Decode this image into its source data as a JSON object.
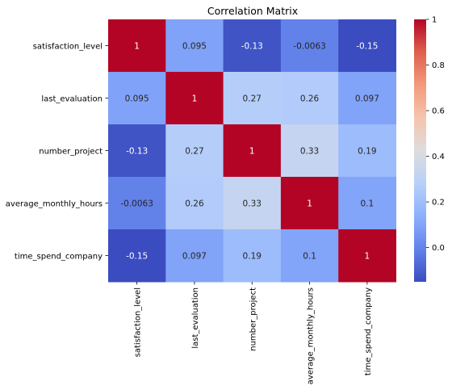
{
  "chart_data": {
    "type": "heatmap",
    "title": "Correlation Matrix",
    "xlabel": "",
    "ylabel": "",
    "row_labels": [
      "satisfaction_level",
      "last_evaluation",
      "number_project",
      "average_monthly_hours",
      "time_spend_company"
    ],
    "col_labels": [
      "satisfaction_level",
      "last_evaluation",
      "number_project",
      "average_monthly_hours",
      "time_spend_company"
    ],
    "values": [
      [
        1,
        0.095,
        -0.13,
        -0.0063,
        -0.15
      ],
      [
        0.095,
        1,
        0.27,
        0.26,
        0.097
      ],
      [
        -0.13,
        0.27,
        1,
        0.33,
        0.19
      ],
      [
        -0.0063,
        0.26,
        0.33,
        1,
        0.1
      ],
      [
        -0.15,
        0.097,
        0.19,
        0.1,
        1
      ]
    ],
    "annotations": [
      [
        "1",
        "0.095",
        "-0.13",
        "-0.0063",
        "-0.15"
      ],
      [
        "0.095",
        "1",
        "0.27",
        "0.26",
        "0.097"
      ],
      [
        "-0.13",
        "0.27",
        "1",
        "0.33",
        "0.19"
      ],
      [
        "-0.0063",
        "0.26",
        "0.33",
        "1",
        "0.1"
      ],
      [
        "-0.15",
        "0.097",
        "0.19",
        "0.1",
        "1"
      ]
    ],
    "colormap": "coolwarm",
    "color_range": [
      -0.15,
      1
    ],
    "colorbar_ticks": [
      0.0,
      0.2,
      0.4,
      0.6,
      0.8,
      1.0
    ],
    "colorbar_tick_labels": [
      "0.0",
      "0.2",
      "0.4",
      "0.6",
      "0.8",
      "1"
    ],
    "grid": false,
    "colors": {
      "low": "#3b4cc0",
      "mid": "#dddddd",
      "high": "#b40426"
    }
  }
}
